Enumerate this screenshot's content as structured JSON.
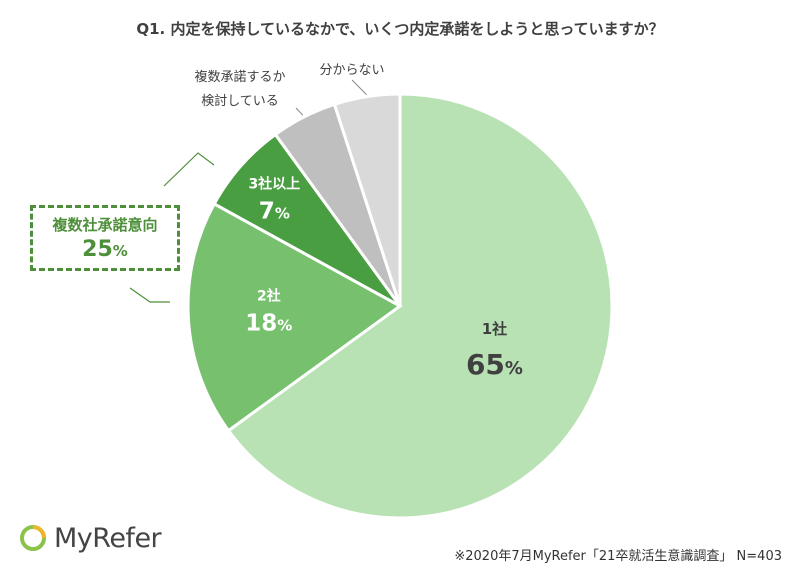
{
  "chart_data": {
    "type": "pie",
    "title": "Q1. 内定を保持しているなかで、いくつ内定承諾をしようと思っていますか？",
    "slices": [
      {
        "label": "1社",
        "value": 65,
        "value_label": "65",
        "color": "#b8e2b4"
      },
      {
        "label": "2社",
        "value": 18,
        "value_label": "18",
        "color": "#76c06e"
      },
      {
        "label": "3社以上",
        "value": 7,
        "value_label": "7",
        "color": "#4a9e42"
      },
      {
        "label": "複数承諾するか検討している",
        "label_lines": [
          "複数承諾するか",
          "検討している"
        ],
        "value": 5,
        "color": "#bfbfbf"
      },
      {
        "label": "分からない",
        "value": 5,
        "color": "#d9d9d9"
      }
    ],
    "group_annotation": {
      "label": "複数社承諾意向",
      "value": 25,
      "value_label": "25"
    },
    "percent_sign": "%"
  },
  "logo": {
    "text": "MyRefer",
    "icon": "ring-logo-icon"
  },
  "source_note": "※2020年7月MyRefer「21卒就活生意識調査」 N=403",
  "colors": {
    "accent": "#4e8f3a",
    "text": "#404040"
  }
}
